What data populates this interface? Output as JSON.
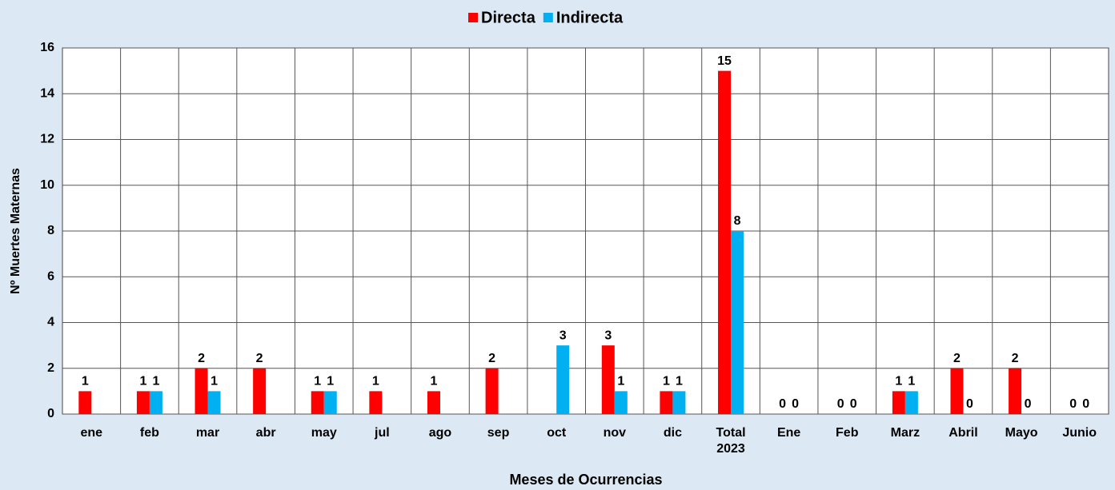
{
  "chart_data": {
    "type": "bar",
    "categories": [
      "ene",
      "feb",
      "mar",
      "abr",
      "may",
      "jul",
      "ago",
      "sep",
      "oct",
      "nov",
      "dic",
      "Total 2023",
      "Ene",
      "Feb",
      "Marz",
      "Abril",
      "Mayo",
      "Junio"
    ],
    "series": [
      {
        "name": "Directa",
        "color": "#ff0000",
        "values": [
          1,
          1,
          2,
          2,
          1,
          1,
          1,
          2,
          null,
          3,
          1,
          15,
          0,
          0,
          1,
          2,
          2,
          0
        ]
      },
      {
        "name": "Indirecta",
        "color": "#00b0f0",
        "values": [
          null,
          1,
          1,
          null,
          1,
          null,
          null,
          null,
          3,
          1,
          1,
          8,
          0,
          0,
          1,
          0,
          0,
          0
        ]
      }
    ],
    "ylim": [
      0,
      16
    ],
    "yticks": [
      0,
      2,
      4,
      6,
      8,
      10,
      12,
      14,
      16
    ],
    "grid": true,
    "xlabel": "Meses de Ocurrencias",
    "ylabel": "Nº Muertes Maternas",
    "legend": "top"
  }
}
